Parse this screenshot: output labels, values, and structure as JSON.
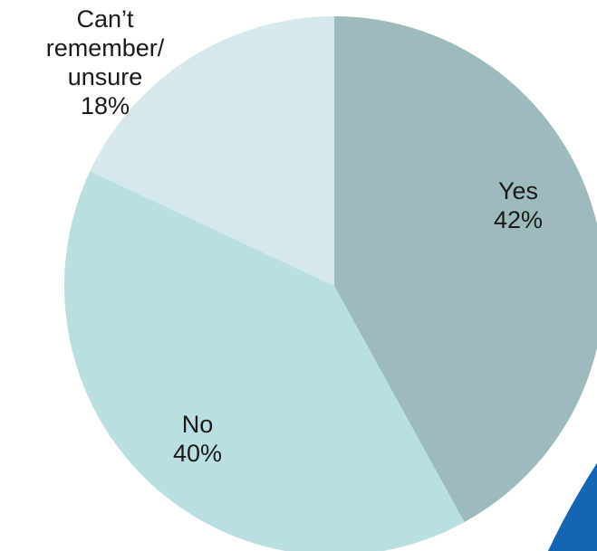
{
  "chart_data": {
    "type": "pie",
    "title": "",
    "slices": [
      {
        "label_lines": [
          "Yes",
          "42%"
        ],
        "value": 42,
        "color": "#9dbbbc"
      },
      {
        "label_lines": [
          "No",
          "40%"
        ],
        "value": 40,
        "color": "#badfe2"
      },
      {
        "label_lines": [
          "Can’t",
          "remember/",
          "unsure",
          "18%"
        ],
        "value": 18,
        "color": "#d5e9ed"
      }
    ]
  },
  "decoration": {
    "accent_color": "#1465b4"
  }
}
